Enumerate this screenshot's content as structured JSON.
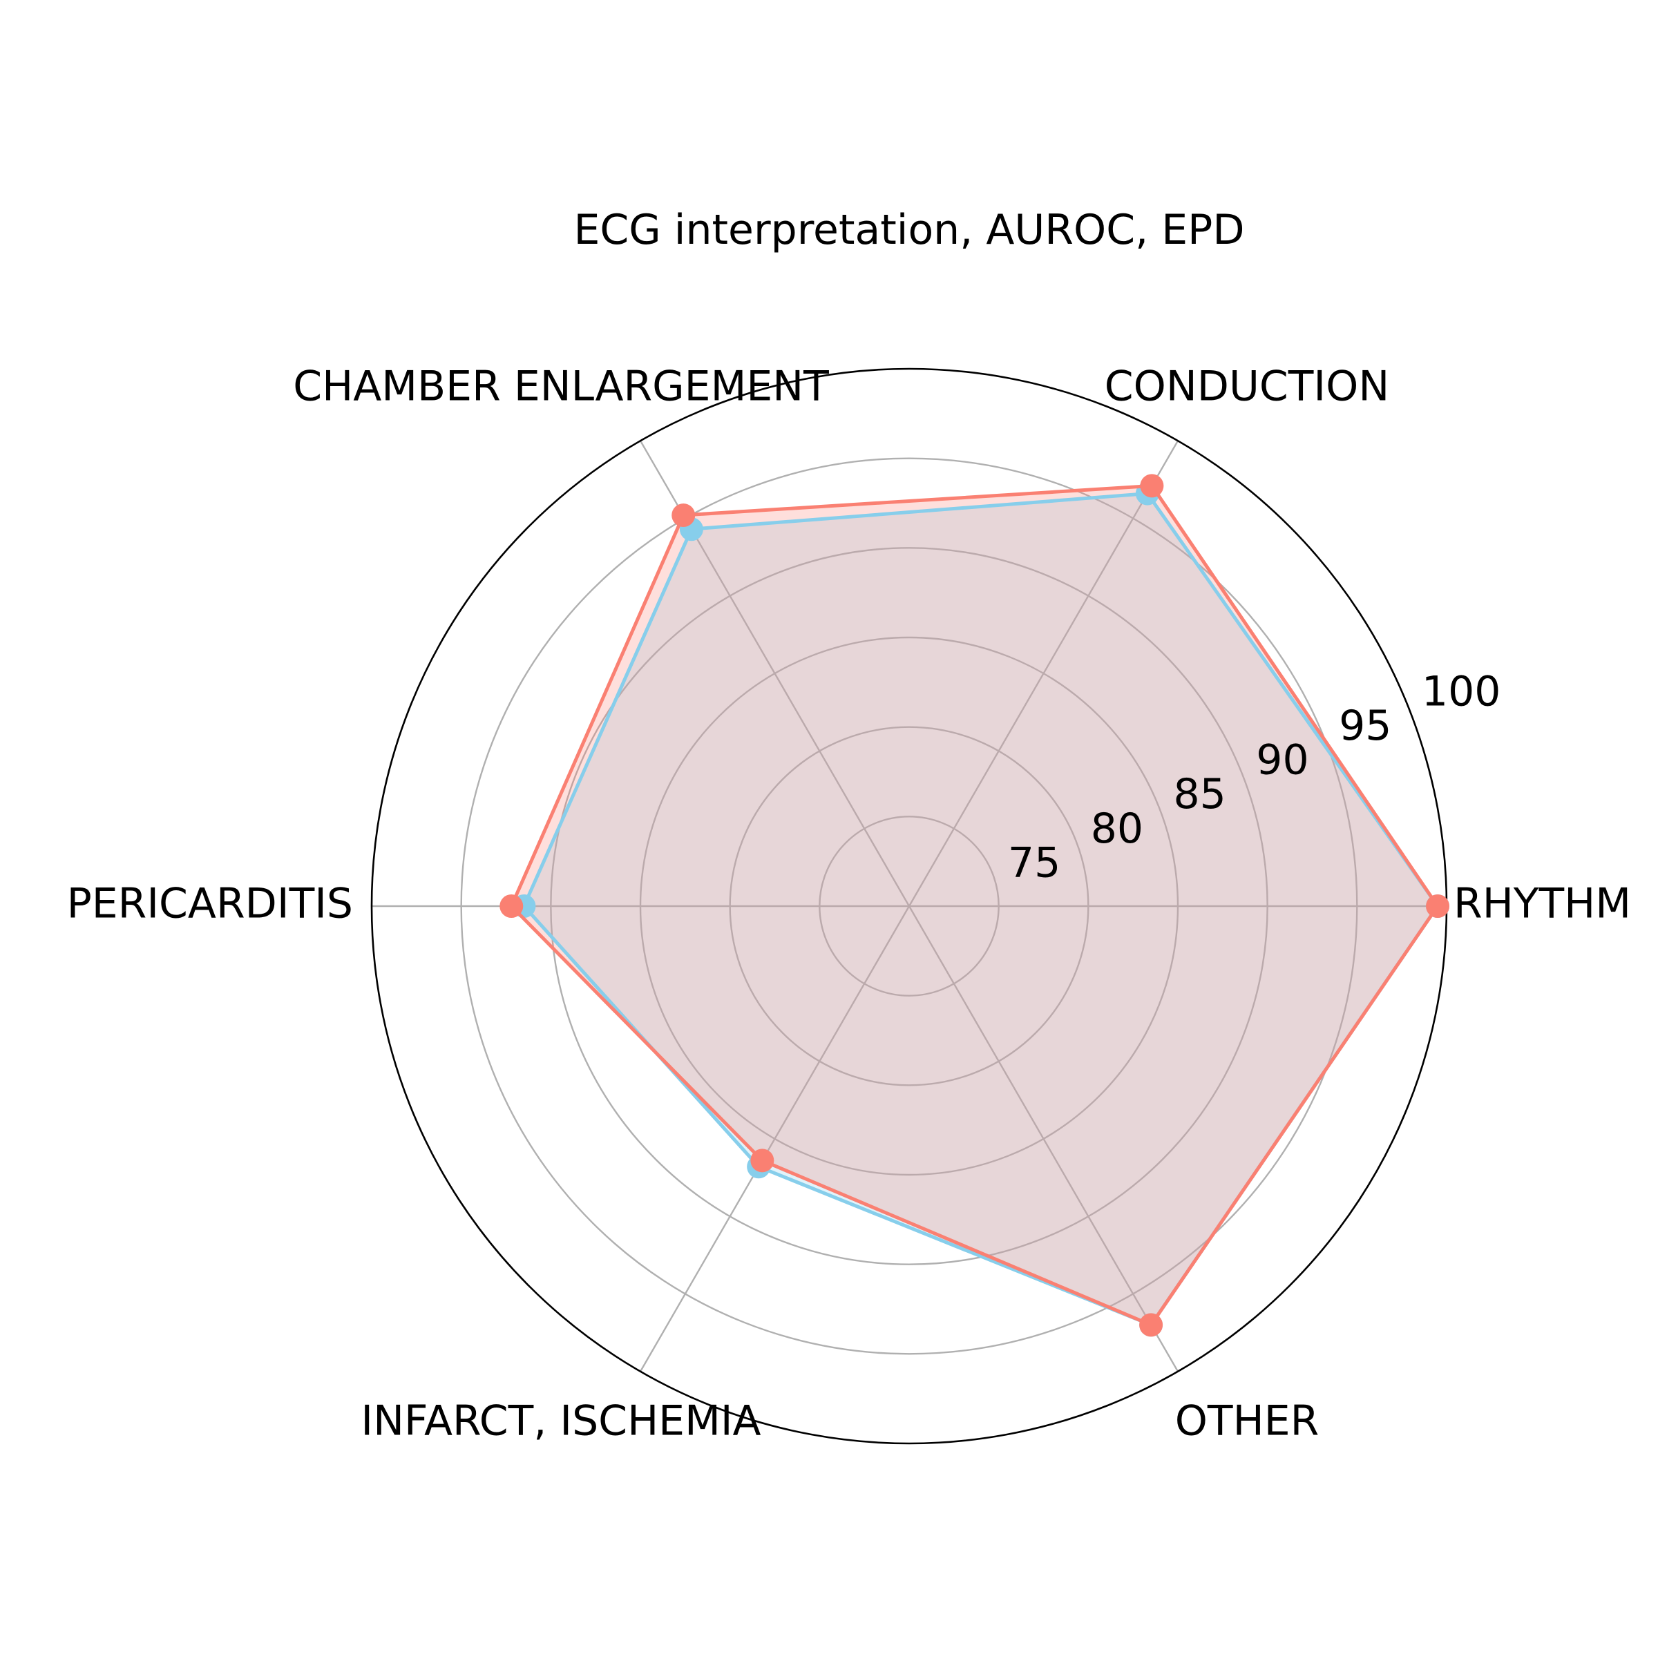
{
  "chart_data": {
    "type": "radar",
    "title": "ECG interpretation, AUROC,  EPD",
    "categories": [
      "RHYTHM",
      "CONDUCTION",
      "CHAMBER ENLARGEMENT",
      "PERICARDITIS",
      "INFARCT, ISCHEMIA",
      "OTHER"
    ],
    "rlim": [
      70,
      100
    ],
    "rticks": [
      75,
      80,
      85,
      90,
      95,
      100
    ],
    "rtick_labels": [
      "75",
      "80",
      "85",
      "90",
      "95",
      "100"
    ],
    "grid": true,
    "series": [
      {
        "values": [
          99.5,
          96.6,
          94.3,
          91.5,
          86.8,
          97.0
        ],
        "color": "#87ceeb"
      },
      {
        "values": [
          99.5,
          97.1,
          95.2,
          92.2,
          86.4,
          97.0
        ],
        "color": "#fa8072"
      }
    ]
  }
}
